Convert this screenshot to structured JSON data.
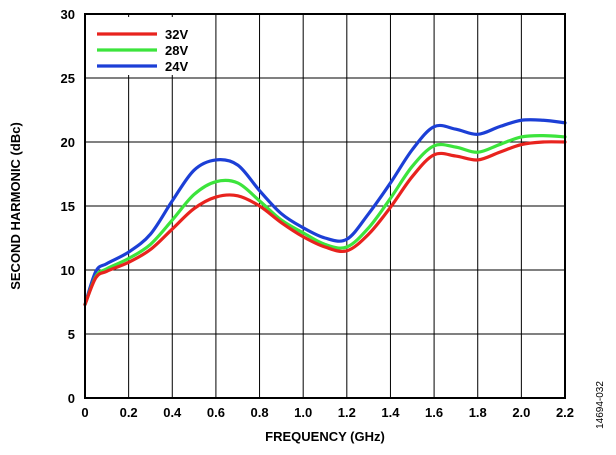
{
  "figure_id": "14694-032",
  "chart_data": {
    "type": "line",
    "title": "",
    "xlabel": "FREQUENCY (GHz)",
    "ylabel": "SECOND HARMONIC (dBc)",
    "xlim": [
      0,
      2.2
    ],
    "ylim": [
      0,
      30
    ],
    "x_ticks": [
      "0",
      "0.2",
      "0.4",
      "0.6",
      "0.8",
      "1.0",
      "1.2",
      "1.4",
      "1.6",
      "1.8",
      "2.0",
      "2.2"
    ],
    "y_ticks": [
      "0",
      "5",
      "10",
      "15",
      "20",
      "25",
      "30"
    ],
    "grid": true,
    "legend_position": "top-left",
    "series": [
      {
        "name": "32V",
        "color": "#e8231e",
        "x": [
          0.0,
          0.05,
          0.1,
          0.2,
          0.3,
          0.4,
          0.5,
          0.6,
          0.7,
          0.8,
          0.9,
          1.0,
          1.1,
          1.2,
          1.3,
          1.4,
          1.5,
          1.6,
          1.7,
          1.8,
          1.9,
          2.0,
          2.1,
          2.2
        ],
        "values": [
          7.3,
          9.4,
          9.9,
          10.6,
          11.6,
          13.2,
          14.8,
          15.7,
          15.8,
          15.0,
          13.7,
          12.6,
          11.8,
          11.5,
          12.8,
          14.9,
          17.3,
          19.0,
          18.9,
          18.6,
          19.2,
          19.8,
          20.0,
          20.0
        ]
      },
      {
        "name": "28V",
        "color": "#3ce43c",
        "x": [
          0.0,
          0.05,
          0.1,
          0.2,
          0.3,
          0.4,
          0.5,
          0.6,
          0.7,
          0.8,
          0.9,
          1.0,
          1.1,
          1.2,
          1.3,
          1.4,
          1.5,
          1.6,
          1.7,
          1.8,
          1.9,
          2.0,
          2.1,
          2.2
        ],
        "values": [
          7.3,
          9.5,
          10.1,
          10.9,
          12.0,
          13.9,
          15.9,
          16.9,
          16.8,
          15.4,
          13.9,
          12.9,
          12.0,
          11.8,
          13.3,
          15.6,
          18.1,
          19.7,
          19.6,
          19.2,
          19.8,
          20.4,
          20.5,
          20.4
        ]
      },
      {
        "name": "24V",
        "color": "#1c3fd6",
        "x": [
          0.0,
          0.05,
          0.1,
          0.2,
          0.3,
          0.4,
          0.5,
          0.6,
          0.7,
          0.8,
          0.9,
          1.0,
          1.1,
          1.2,
          1.3,
          1.4,
          1.5,
          1.6,
          1.7,
          1.8,
          1.9,
          2.0,
          2.1,
          2.2
        ],
        "values": [
          7.3,
          9.9,
          10.5,
          11.4,
          12.8,
          15.4,
          17.8,
          18.6,
          18.2,
          16.2,
          14.4,
          13.3,
          12.5,
          12.4,
          14.4,
          16.8,
          19.4,
          21.2,
          21.0,
          20.6,
          21.2,
          21.7,
          21.7,
          21.5
        ]
      }
    ]
  }
}
